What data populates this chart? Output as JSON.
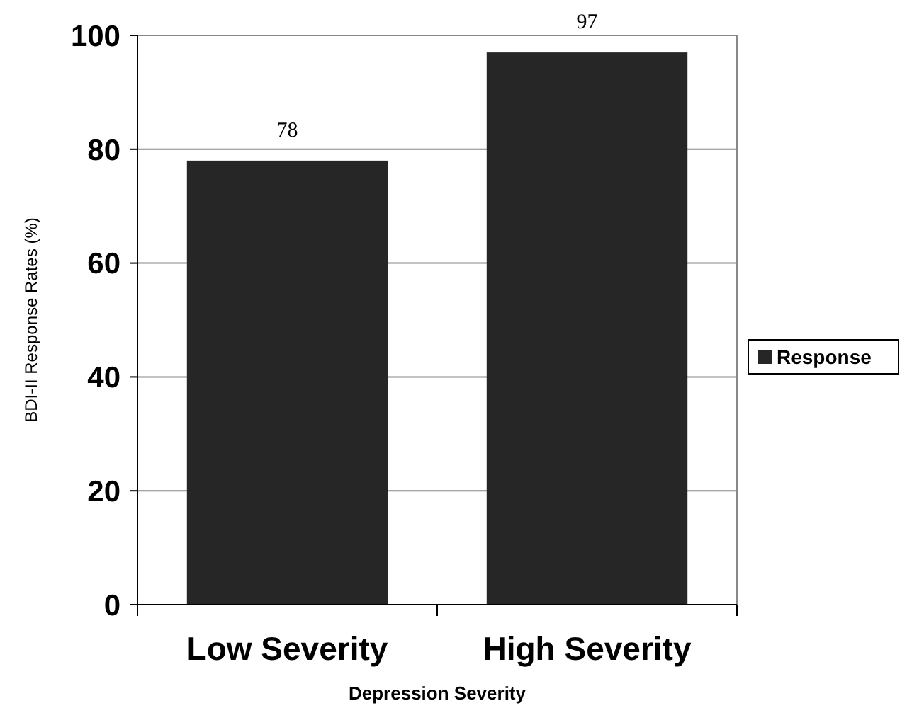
{
  "chart_data": {
    "type": "bar",
    "xlabel": "Depression Severity",
    "ylabel": "BDI-II Response Rates (%)",
    "categories": [
      "Low Severity",
      "High Severity"
    ],
    "series": [
      {
        "name": "Response",
        "color": "#262626",
        "values": [
          78,
          97
        ]
      }
    ],
    "ylim": [
      0,
      100
    ],
    "yticks": [
      0,
      20,
      40,
      60,
      80,
      100
    ],
    "grid": "y",
    "legend": "right",
    "data_labels": true
  }
}
